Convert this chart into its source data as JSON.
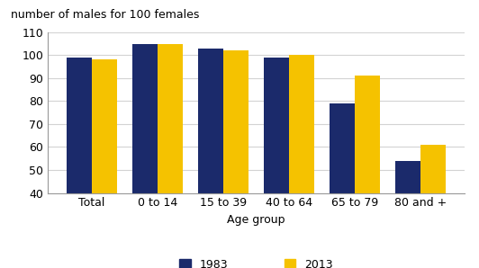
{
  "categories": [
    "Total",
    "0 to 14",
    "15 to 39",
    "40 to 64",
    "65 to 79",
    "80 and +"
  ],
  "values_1983": [
    99,
    105,
    103,
    99,
    79,
    54
  ],
  "values_2013": [
    98,
    105,
    102,
    100,
    91,
    61
  ],
  "color_1983": "#1b2a6b",
  "color_2013": "#f5c200",
  "ylabel": "number of males for 100 females",
  "xlabel": "Age group",
  "ylim": [
    40,
    110
  ],
  "yticks": [
    40,
    50,
    60,
    70,
    80,
    90,
    100,
    110
  ],
  "legend_labels": [
    "1983",
    "2013"
  ],
  "bar_width": 0.38,
  "axis_fontsize": 9,
  "tick_fontsize": 9,
  "legend_fontsize": 9,
  "ylabel_fontsize": 9
}
